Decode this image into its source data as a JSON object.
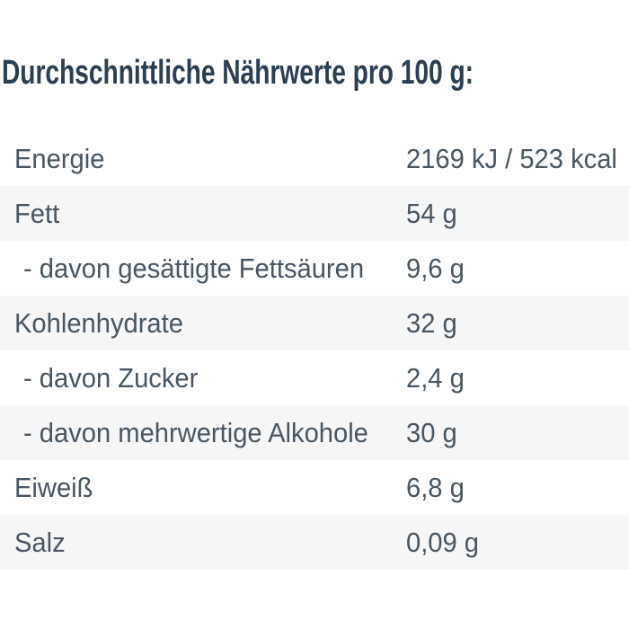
{
  "title": "Durchschnittliche Nährwerte pro 100 g:",
  "table": {
    "unit_basis": "pro 100 g",
    "rows": [
      {
        "label": "Energie",
        "value": "2169 kJ / 523 kcal"
      },
      {
        "label": "Fett",
        "value": "54 g"
      },
      {
        "label": "- davon gesättigte Fettsäuren",
        "value": "9,6 g"
      },
      {
        "label": "Kohlenhydrate",
        "value": "32 g"
      },
      {
        "label": "- davon Zucker",
        "value": "2,4 g"
      },
      {
        "label": "- davon mehrwertige Alkohole",
        "value": "30 g"
      },
      {
        "label": "Eiweiß",
        "value": "6,8 g"
      },
      {
        "label": "Salz",
        "value": "0,09 g"
      }
    ]
  },
  "colors": {
    "title_text": "#2b3e52",
    "row_text": "#485663",
    "row_alt_background": "#f6f6f6",
    "background": "#ffffff"
  }
}
